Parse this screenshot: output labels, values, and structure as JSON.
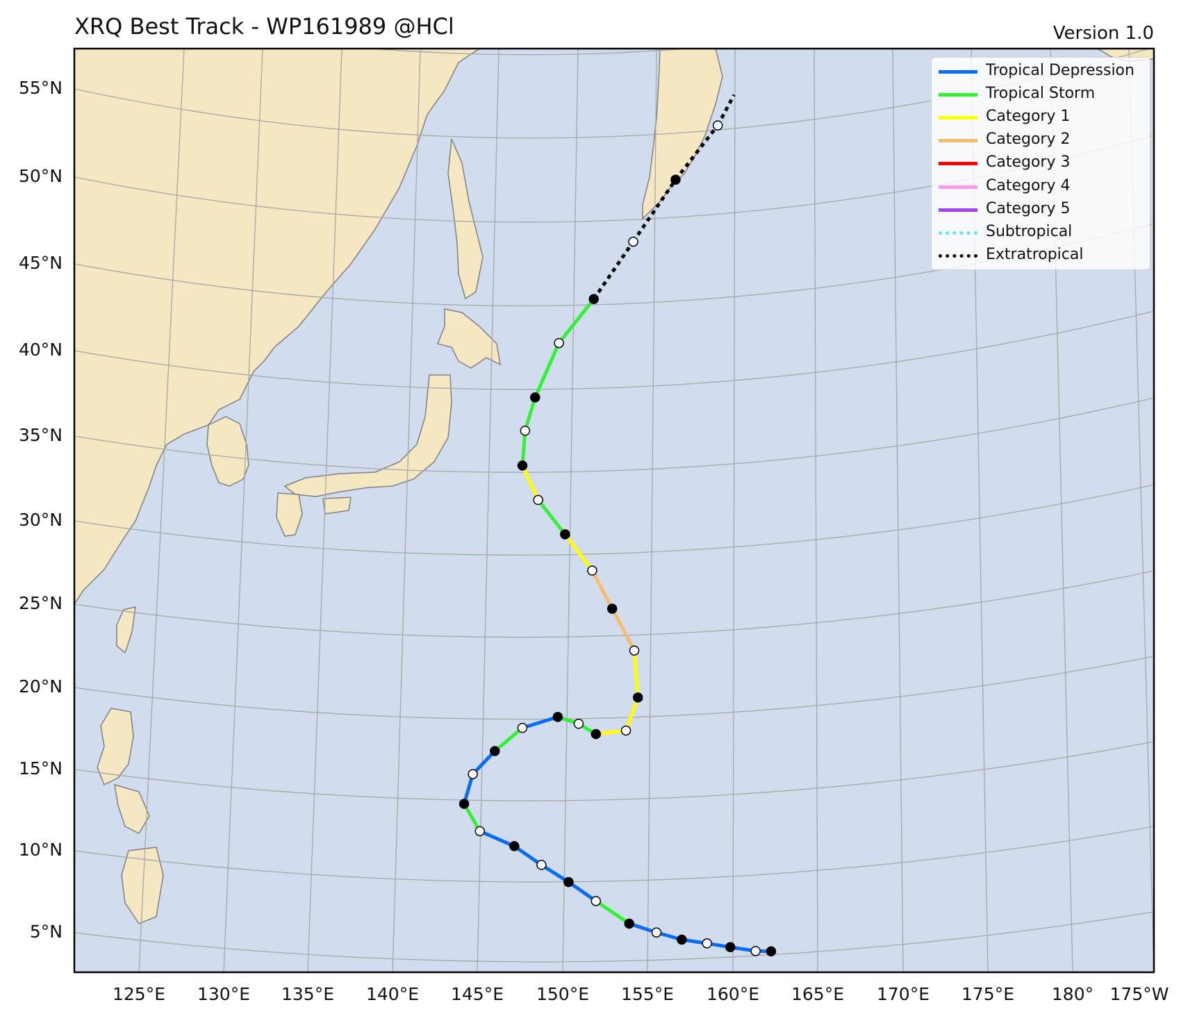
{
  "title": "XRQ Best Track - WP161989  @HCl",
  "version": "Version 1.0",
  "colors": {
    "ocean": "#d1ddef",
    "land": "#f4e7c2",
    "coast": "#7f7f7f",
    "grid": "#a6a6a6"
  },
  "axes": {
    "lat_labels": [
      "5°N",
      "10°N",
      "15°N",
      "20°N",
      "25°N",
      "30°N",
      "35°N",
      "40°N",
      "45°N",
      "50°N",
      "55°N"
    ],
    "lon_labels": [
      "125°E",
      "130°E",
      "135°E",
      "140°E",
      "145°E",
      "150°E",
      "155°E",
      "160°E",
      "165°E",
      "170°E",
      "175°E",
      "180°",
      "175°W"
    ]
  },
  "legend": [
    {
      "label": "Tropical Depression",
      "color": "#0a6cf5",
      "style": "solid"
    },
    {
      "label": "Tropical Storm",
      "color": "#33f233",
      "style": "solid"
    },
    {
      "label": "Category 1",
      "color": "#ffff00",
      "style": "solid"
    },
    {
      "label": "Category 2",
      "color": "#f5bc6c",
      "style": "solid"
    },
    {
      "label": "Category 3",
      "color": "#ff0000",
      "style": "solid"
    },
    {
      "label": "Category 4",
      "color": "#ff99ee",
      "style": "solid"
    },
    {
      "label": "Category 5",
      "color": "#a544f2",
      "style": "solid"
    },
    {
      "label": "Subtropical",
      "color": "#55e8f5",
      "style": "dotted"
    },
    {
      "label": "Extratropical",
      "color": "#000000",
      "style": "dotted"
    }
  ],
  "track": [
    {
      "lon": 158.2,
      "lat": 3.3,
      "cat": "TD",
      "fix": "00Z"
    },
    {
      "lon": 157.4,
      "lat": 3.3,
      "cat": "TD",
      "fix": "12Z"
    },
    {
      "lon": 156.1,
      "lat": 3.5,
      "cat": "TD",
      "fix": "00Z"
    },
    {
      "lon": 154.9,
      "lat": 3.7,
      "cat": "TD",
      "fix": "12Z"
    },
    {
      "lon": 153.6,
      "lat": 3.9,
      "cat": "TD",
      "fix": "00Z"
    },
    {
      "lon": 152.3,
      "lat": 4.3,
      "cat": "TD",
      "fix": "12Z"
    },
    {
      "lon": 150.9,
      "lat": 4.8,
      "cat": "TS",
      "fix": "00Z"
    },
    {
      "lon": 149.2,
      "lat": 6.1,
      "cat": "TD",
      "fix": "12Z"
    },
    {
      "lon": 147.8,
      "lat": 7.2,
      "cat": "TD",
      "fix": "00Z"
    },
    {
      "lon": 146.4,
      "lat": 8.2,
      "cat": "TD",
      "fix": "12Z"
    },
    {
      "lon": 145.0,
      "lat": 9.3,
      "cat": "TD",
      "fix": "00Z"
    },
    {
      "lon": 143.2,
      "lat": 10.2,
      "cat": "TS",
      "fix": "12Z"
    },
    {
      "lon": 142.4,
      "lat": 11.8,
      "cat": "TD",
      "fix": "00Z"
    },
    {
      "lon": 142.9,
      "lat": 13.5,
      "cat": "TD",
      "fix": "12Z"
    },
    {
      "lon": 144.1,
      "lat": 14.8,
      "cat": "TS",
      "fix": "00Z"
    },
    {
      "lon": 145.6,
      "lat": 16.1,
      "cat": "TD",
      "fix": "12Z"
    },
    {
      "lon": 147.5,
      "lat": 16.7,
      "cat": "TS",
      "fix": "00Z"
    },
    {
      "lon": 148.6,
      "lat": 16.3,
      "cat": "TS",
      "fix": "12Z"
    },
    {
      "lon": 149.5,
      "lat": 15.7,
      "cat": "C1",
      "fix": "00Z"
    },
    {
      "lon": 151.1,
      "lat": 15.9,
      "cat": "C1",
      "fix": "12Z"
    },
    {
      "lon": 151.8,
      "lat": 17.8,
      "cat": "C1",
      "fix": "00Z"
    },
    {
      "lon": 151.7,
      "lat": 20.5,
      "cat": "C2",
      "fix": "12Z"
    },
    {
      "lon": 150.6,
      "lat": 22.9,
      "cat": "C2",
      "fix": "00Z"
    },
    {
      "lon": 149.6,
      "lat": 25.1,
      "cat": "C1",
      "fix": "12Z"
    },
    {
      "lon": 148.2,
      "lat": 27.2,
      "cat": "TS",
      "fix": "00Z"
    },
    {
      "lon": 146.8,
      "lat": 29.2,
      "cat": "C1",
      "fix": "12Z"
    },
    {
      "lon": 146.0,
      "lat": 31.2,
      "cat": "TS",
      "fix": "00Z"
    },
    {
      "lon": 146.2,
      "lat": 33.2,
      "cat": "TS",
      "fix": "12Z"
    },
    {
      "lon": 146.8,
      "lat": 35.1,
      "cat": "TS",
      "fix": "00Z"
    },
    {
      "lon": 148.2,
      "lat": 38.2,
      "cat": "TS",
      "fix": "12Z"
    },
    {
      "lon": 150.2,
      "lat": 40.7,
      "cat": "ET",
      "fix": "00Z"
    },
    {
      "lon": 152.5,
      "lat": 44.0,
      "cat": "ET",
      "fix": "12Z"
    },
    {
      "lon": 155.0,
      "lat": 47.6,
      "cat": "ET",
      "fix": "00Z"
    },
    {
      "lon": 157.5,
      "lat": 50.8,
      "cat": "ET",
      "fix": "12Z"
    },
    {
      "lon": 158.5,
      "lat": 52.6,
      "cat": "ET",
      "fix": ""
    }
  ]
}
